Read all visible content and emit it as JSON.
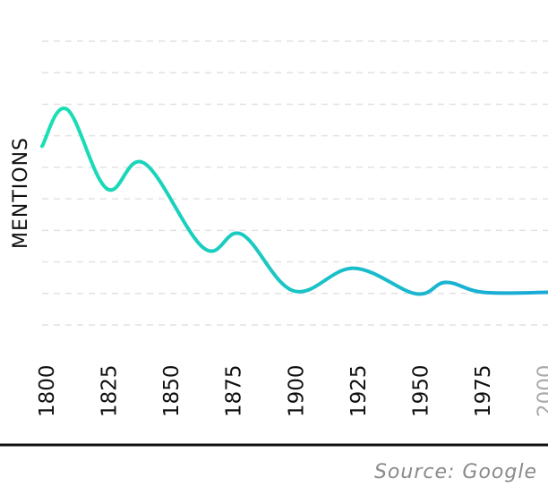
{
  "chart_data": {
    "type": "line",
    "title": "",
    "xlabel": "",
    "ylabel": "MENTIONS",
    "x_ticks": [
      "1800",
      "1825",
      "1850",
      "1875",
      "1900",
      "1925",
      "1950",
      "1975",
      "2000"
    ],
    "x_tick_colors": [
      "#111111",
      "#111111",
      "#111111",
      "#111111",
      "#111111",
      "#111111",
      "#111111",
      "#111111",
      "#aaaaaa"
    ],
    "xlim": [
      1800,
      2003
    ],
    "ylim": [
      0,
      10
    ],
    "grid": "horizontal dashed",
    "line_gradient": [
      "#19e0b3",
      "#1aa8d8"
    ],
    "series": [
      {
        "x": [
          1800,
          1810,
          1826,
          1841,
          1865,
          1880,
          1901,
          1925,
          1950,
          1962,
          1977,
          2003
        ],
        "values": [
          6.3,
          7.6,
          4.8,
          5.7,
          2.7,
          3.2,
          1.2,
          2.0,
          1.1,
          1.5,
          1.15,
          1.15
        ]
      }
    ]
  },
  "source": "Source: Google"
}
